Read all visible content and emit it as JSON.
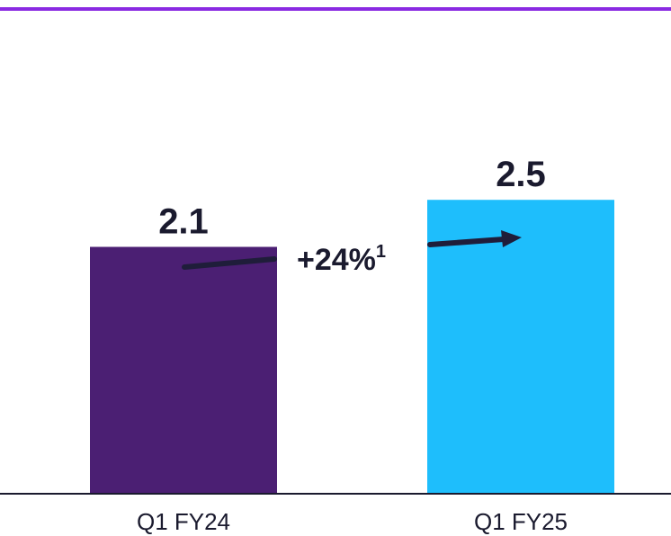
{
  "colors": {
    "top_rule": "#8a2be2",
    "bar_fy24": "#4b1f73",
    "bar_fy25": "#1ebefc",
    "text": "#1a1a2e",
    "arrow": "#1f1d3a",
    "baseline": "#1a1a2e"
  },
  "chart_data": {
    "type": "bar",
    "categories": [
      "Q1 FY24",
      "Q1 FY25"
    ],
    "values": [
      2.1,
      2.5
    ],
    "value_labels": [
      "2.1",
      "2.5"
    ],
    "title": "",
    "xlabel": "",
    "ylabel": "",
    "ylim": [
      0,
      4.2
    ],
    "grid": false,
    "annotation": {
      "text": "+24%",
      "superscript": "1"
    }
  }
}
